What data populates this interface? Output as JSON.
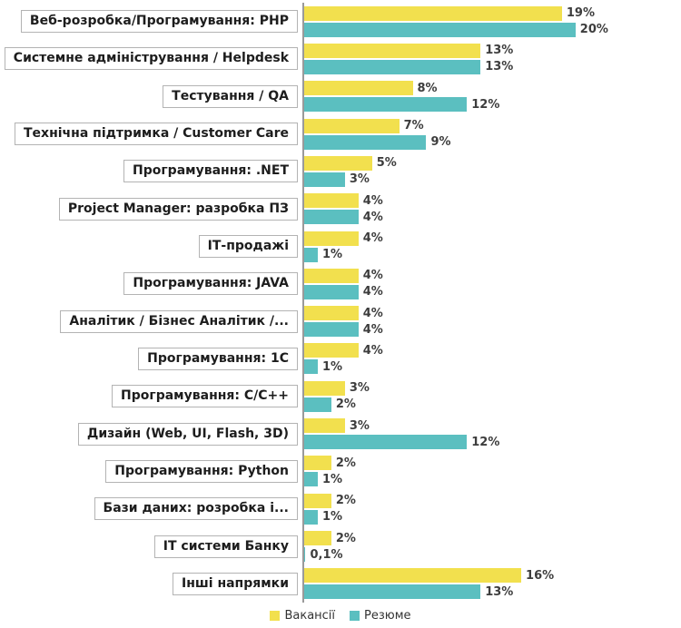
{
  "chart_data": {
    "type": "bar",
    "orientation": "horizontal",
    "title": "",
    "xlabel": "",
    "ylabel": "",
    "xlim": [
      0,
      20
    ],
    "grid": false,
    "legend_position": "bottom-center",
    "categories": [
      "Веб-розробка/Програмування: PHP",
      "Системне адміністрування / Helpdesk",
      "Тестування / QA",
      "Технічна підтримка / Customer Care",
      "Програмування: .NET",
      "Project Manager: разробка ПЗ",
      "ІТ-продажі",
      "Програмування: JAVA",
      "Аналітик / Бізнес Аналітик /...",
      "Програмування: 1С",
      "Програмування: C/C++",
      "Дизайн (Web, UI, Flash, 3D)",
      "Програмування: Python",
      "Бази даних: розробка і...",
      "ІТ системи Банку",
      "Інші напрямки"
    ],
    "series": [
      {
        "name": "Вакансії",
        "color": "#F2E04E",
        "values": [
          19,
          13,
          8,
          7,
          5,
          4,
          4,
          4,
          4,
          4,
          3,
          3,
          2,
          2,
          2,
          16
        ],
        "labels": [
          "19%",
          "13%",
          "8%",
          "7%",
          "5%",
          "4%",
          "4%",
          "4%",
          "4%",
          "4%",
          "3%",
          "3%",
          "2%",
          "2%",
          "2%",
          "16%"
        ]
      },
      {
        "name": "Резюме",
        "color": "#5BBFC0",
        "values": [
          20,
          13,
          12,
          9,
          3,
          4,
          1,
          4,
          4,
          1,
          2,
          12,
          1,
          1,
          0.1,
          13
        ],
        "labels": [
          "20%",
          "13%",
          "12%",
          "9%",
          "3%",
          "4%",
          "1%",
          "4%",
          "4%",
          "1%",
          "2%",
          "12%",
          "1%",
          "1%",
          "0,1%",
          "13%"
        ]
      }
    ]
  },
  "legend": {
    "items": [
      {
        "label": "Вакансії",
        "color": "#F2E04E"
      },
      {
        "label": "Резюме",
        "color": "#5BBFC0"
      }
    ]
  }
}
